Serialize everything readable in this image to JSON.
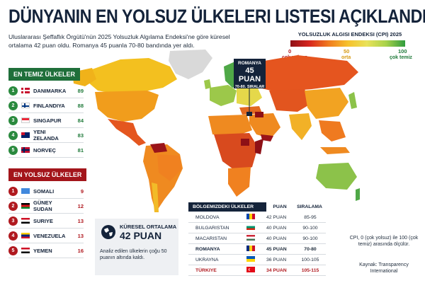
{
  "header": {
    "title": "DÜNYANIN EN YOLSUZ ÜLKELERI LISTESI AÇIKLANDI",
    "subtitle": "Uluslararası Şeffaflık Örgütü'nün 2025 Yolsuzluk Algılama Endeksi'ne göre küresel ortalama 42 puan oldu. Romanya 45 puanla 70-80 bandında yer aldı."
  },
  "legend": {
    "title": "YOLSUZLUK ALGISI ENDEKSI (CPI) 2025",
    "min": "0",
    "mid": "50",
    "max": "100",
    "min_label": "çok yolsuz",
    "mid_label": "orta",
    "max_label": "çok temiz"
  },
  "callout": {
    "country": "ROMANYA",
    "points": "45 PUAN",
    "range": "70-80. SIRALAR"
  },
  "cleanest": {
    "label": "EN TEMIZ ÜLKELER",
    "items": [
      {
        "rank": "1",
        "name": "DANIMARKA",
        "score": "89"
      },
      {
        "rank": "2",
        "name": "FINLANDIYA",
        "score": "88"
      },
      {
        "rank": "3",
        "name": "SINGAPUR",
        "score": "84"
      },
      {
        "rank": "4",
        "name": "YENI ZELANDA",
        "score": "83"
      },
      {
        "rank": "5",
        "name": "NORVEÇ",
        "score": "81"
      }
    ]
  },
  "most_corrupt": {
    "label": "EN YOLSUZ ÜLKELER",
    "items": [
      {
        "rank": "1",
        "name": "SOMALI",
        "score": "9"
      },
      {
        "rank": "2",
        "name": "GÜNEY SUDAN",
        "score": "12"
      },
      {
        "rank": "3",
        "name": "SURIYE",
        "score": "13"
      },
      {
        "rank": "4",
        "name": "VENEZUELA",
        "score": "13"
      },
      {
        "rank": "5",
        "name": "YEMEN",
        "score": "16"
      }
    ]
  },
  "global": {
    "title": "KÜRESEL ORTALAMA",
    "points": "42 PUAN",
    "text": "Analiz edilen ülkelerin çoğu 50 puanın altında kaldı."
  },
  "region": {
    "title": "BÖLGEMIZDEKI ÜLKELER",
    "col_points": "PUAN",
    "col_rank": "SIRALAMA",
    "rows": [
      {
        "name": "MOLDOVA",
        "points": "42 PUAN",
        "range": "85-95"
      },
      {
        "name": "BULGARISTAN",
        "points": "40 PUAN",
        "range": "90-100"
      },
      {
        "name": "MACARISTAN",
        "points": "40 PUAN",
        "range": "90-100"
      },
      {
        "name": "ROMANYA",
        "points": "45 PUAN",
        "range": "70-80"
      },
      {
        "name": "UKRAYNA",
        "points": "36 PUAN",
        "range": "100-105"
      },
      {
        "name": "TÜRKIYE",
        "points": "34 PUAN",
        "range": "105-115"
      }
    ]
  },
  "note": "CPI, 0 (çok yolsuz) ile 100 (çok temiz) arasında ölçülür.",
  "source": "Kaynak: Transparency International",
  "colors": {
    "navy": "#14233a",
    "green": "#1f6f3a",
    "red": "#a3151b"
  }
}
